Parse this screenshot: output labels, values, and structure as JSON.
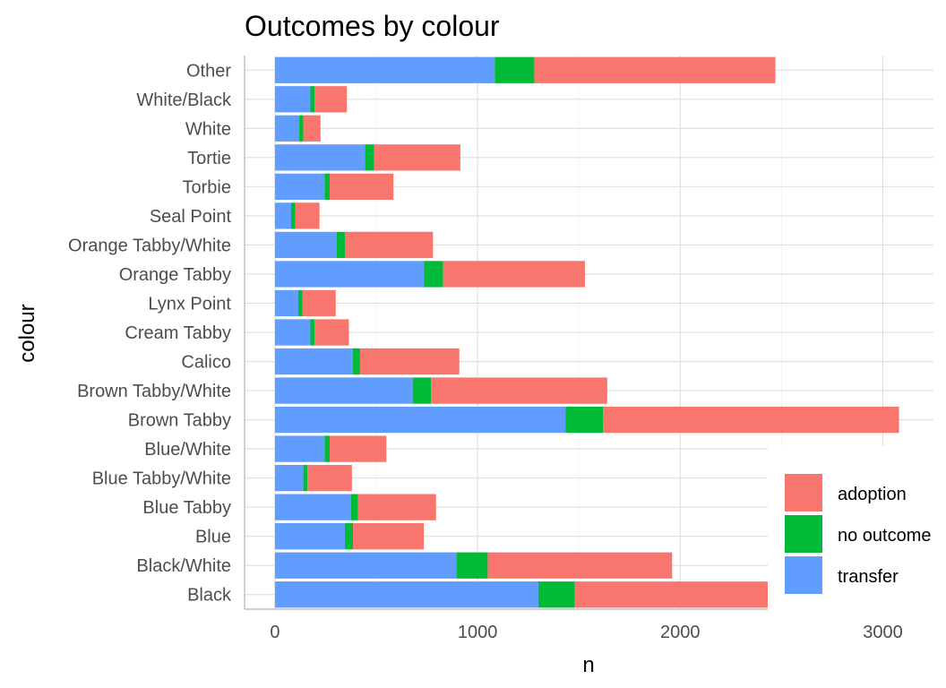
{
  "chart_data": {
    "type": "bar",
    "orientation": "horizontal",
    "stacked": true,
    "title": "Outcomes by colour",
    "xlabel": "n",
    "ylabel": "colour",
    "xlim": [
      -150,
      3250
    ],
    "xticks": [
      0,
      1000,
      2000,
      3000
    ],
    "grid": true,
    "legend_position": "bottom-right",
    "categories": [
      "Other",
      "White/Black",
      "White",
      "Tortie",
      "Torbie",
      "Seal Point",
      "Orange Tabby/White",
      "Orange Tabby",
      "Lynx Point",
      "Cream Tabby",
      "Calico",
      "Brown Tabby/White",
      "Brown Tabby",
      "Blue/White",
      "Blue Tabby/White",
      "Blue Tabby",
      "Blue",
      "Black/White",
      "Black"
    ],
    "series": [
      {
        "name": "transfer",
        "color": "#619CFF",
        "values": [
          1085,
          175,
          120,
          445,
          245,
          80,
          305,
          735,
          115,
          175,
          385,
          680,
          1435,
          245,
          140,
          375,
          345,
          895,
          1300
        ]
      },
      {
        "name": "no outcome",
        "color": "#00BA38",
        "values": [
          195,
          20,
          20,
          45,
          25,
          20,
          40,
          95,
          20,
          20,
          35,
          90,
          185,
          25,
          20,
          35,
          40,
          155,
          180
        ]
      },
      {
        "name": "adoption",
        "color": "#F8766D",
        "values": [
          1190,
          160,
          85,
          425,
          315,
          120,
          435,
          700,
          165,
          170,
          490,
          870,
          1460,
          280,
          220,
          385,
          350,
          910,
          965
        ]
      }
    ],
    "legend": [
      "adoption",
      "no outcome",
      "transfer"
    ]
  }
}
